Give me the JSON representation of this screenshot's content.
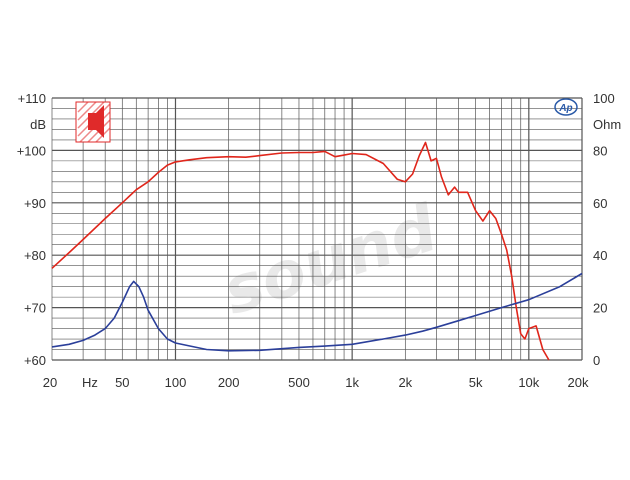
{
  "chart_data": {
    "type": "line",
    "x_scale": "log",
    "xlim": [
      20,
      20000
    ],
    "x_ticks": [
      20,
      50,
      100,
      200,
      500,
      1000,
      2000,
      5000,
      10000,
      20000
    ],
    "x_tick_labels": [
      "20",
      "50",
      "100",
      "200",
      "500",
      "1k",
      "2k",
      "5k",
      "10k",
      "20k"
    ],
    "x_unit_label": "Hz",
    "ylim_left": [
      60,
      110
    ],
    "y_left_ticks": [
      60,
      70,
      80,
      90,
      100,
      110
    ],
    "y_left_tick_labels": [
      "+60",
      "+70",
      "+80",
      "+90",
      "+100",
      "+110"
    ],
    "y_left_unit": "dB",
    "ylim_right": [
      0,
      100
    ],
    "y_right_ticks": [
      0,
      20,
      40,
      60,
      80,
      100
    ],
    "y_right_tick_labels": [
      "0",
      "20",
      "40",
      "60",
      "80",
      "100"
    ],
    "y_right_unit": "Ohm",
    "grid": true,
    "series": [
      {
        "axis": "left",
        "color": "#e0261b",
        "points": [
          [
            20,
            77.5
          ],
          [
            25,
            80.5
          ],
          [
            30,
            83
          ],
          [
            40,
            87
          ],
          [
            50,
            90
          ],
          [
            60,
            92.5
          ],
          [
            70,
            94
          ],
          [
            80,
            95.8
          ],
          [
            90,
            97.2
          ],
          [
            100,
            97.8
          ],
          [
            120,
            98.2
          ],
          [
            150,
            98.6
          ],
          [
            200,
            98.8
          ],
          [
            250,
            98.7
          ],
          [
            300,
            99
          ],
          [
            400,
            99.5
          ],
          [
            500,
            99.6
          ],
          [
            600,
            99.6
          ],
          [
            700,
            99.8
          ],
          [
            800,
            98.8
          ],
          [
            900,
            99.1
          ],
          [
            1000,
            99.4
          ],
          [
            1200,
            99.2
          ],
          [
            1500,
            97.5
          ],
          [
            1800,
            94.5
          ],
          [
            2000,
            94
          ],
          [
            2200,
            95.5
          ],
          [
            2400,
            99
          ],
          [
            2600,
            101.5
          ],
          [
            2800,
            98
          ],
          [
            3000,
            98.5
          ],
          [
            3200,
            95
          ],
          [
            3500,
            91.5
          ],
          [
            3800,
            93
          ],
          [
            4000,
            92
          ],
          [
            4500,
            92
          ],
          [
            5000,
            88.5
          ],
          [
            5500,
            86.5
          ],
          [
            6000,
            88.5
          ],
          [
            6500,
            87
          ],
          [
            7000,
            84
          ],
          [
            7500,
            81
          ],
          [
            8000,
            76
          ],
          [
            8500,
            70
          ],
          [
            9000,
            65
          ],
          [
            9500,
            64
          ],
          [
            10000,
            66
          ],
          [
            11000,
            66.5
          ],
          [
            12000,
            62
          ],
          [
            13000,
            60
          ]
        ]
      },
      {
        "axis": "right",
        "color": "#2b3f9a",
        "points": [
          [
            20,
            5
          ],
          [
            25,
            6
          ],
          [
            30,
            7.5
          ],
          [
            35,
            9.5
          ],
          [
            40,
            12
          ],
          [
            45,
            16
          ],
          [
            50,
            22
          ],
          [
            55,
            28
          ],
          [
            58,
            30
          ],
          [
            62,
            28
          ],
          [
            66,
            24
          ],
          [
            70,
            19
          ],
          [
            80,
            12
          ],
          [
            90,
            8
          ],
          [
            100,
            6.5
          ],
          [
            150,
            4
          ],
          [
            200,
            3.5
          ],
          [
            300,
            3.7
          ],
          [
            500,
            4.8
          ],
          [
            700,
            5.3
          ],
          [
            1000,
            6
          ],
          [
            1500,
            8
          ],
          [
            2000,
            9.5
          ],
          [
            2500,
            11
          ],
          [
            3000,
            12.5
          ],
          [
            4000,
            15
          ],
          [
            5000,
            17
          ],
          [
            7000,
            20
          ],
          [
            10000,
            23
          ],
          [
            15000,
            28
          ],
          [
            20000,
            33
          ]
        ]
      }
    ]
  },
  "watermark": "sound",
  "logo_text": "Ap",
  "colors": {
    "grid": "#555555",
    "spl": "#e0261b",
    "impedance": "#2b3f9a",
    "icon": "#e02a2a"
  }
}
